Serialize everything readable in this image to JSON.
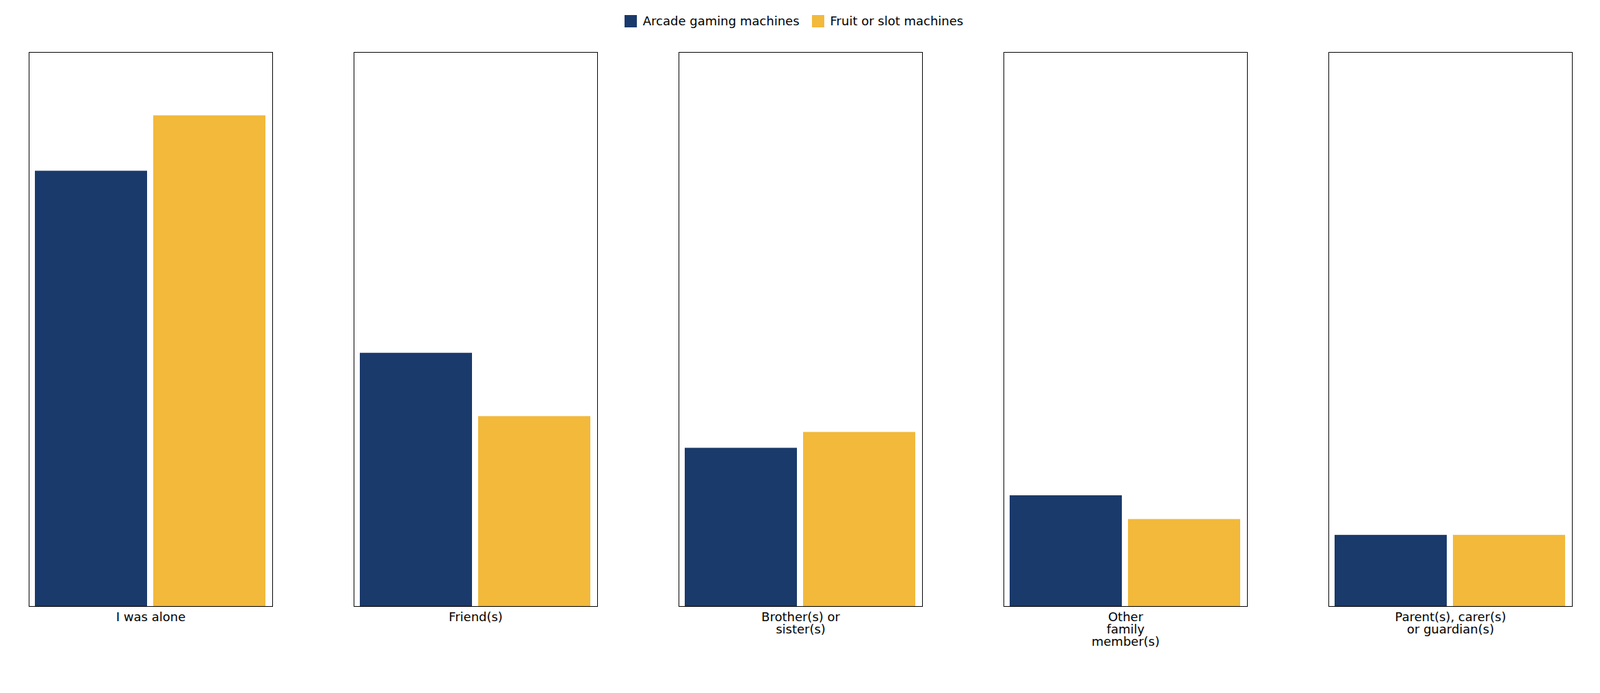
{
  "chart_data": {
    "type": "bar",
    "categories": [
      "I was alone",
      "Friend(s)",
      "Brother(s) or\nsister(s)",
      "Other\nfamily\nmember(s)",
      "Parent(s), carer(s)\nor guardian(s)"
    ],
    "series": [
      {
        "name": "Arcade gaming machines",
        "color": "#1a3a6b",
        "values": [
          55,
          32,
          20,
          14,
          9
        ]
      },
      {
        "name": "Fruit or slot machines",
        "color": "#f2b93b",
        "values": [
          62,
          24,
          22,
          11,
          9
        ]
      }
    ],
    "ylim": [
      0,
      70
    ],
    "legend": "upper center",
    "tick_labels": "x"
  }
}
